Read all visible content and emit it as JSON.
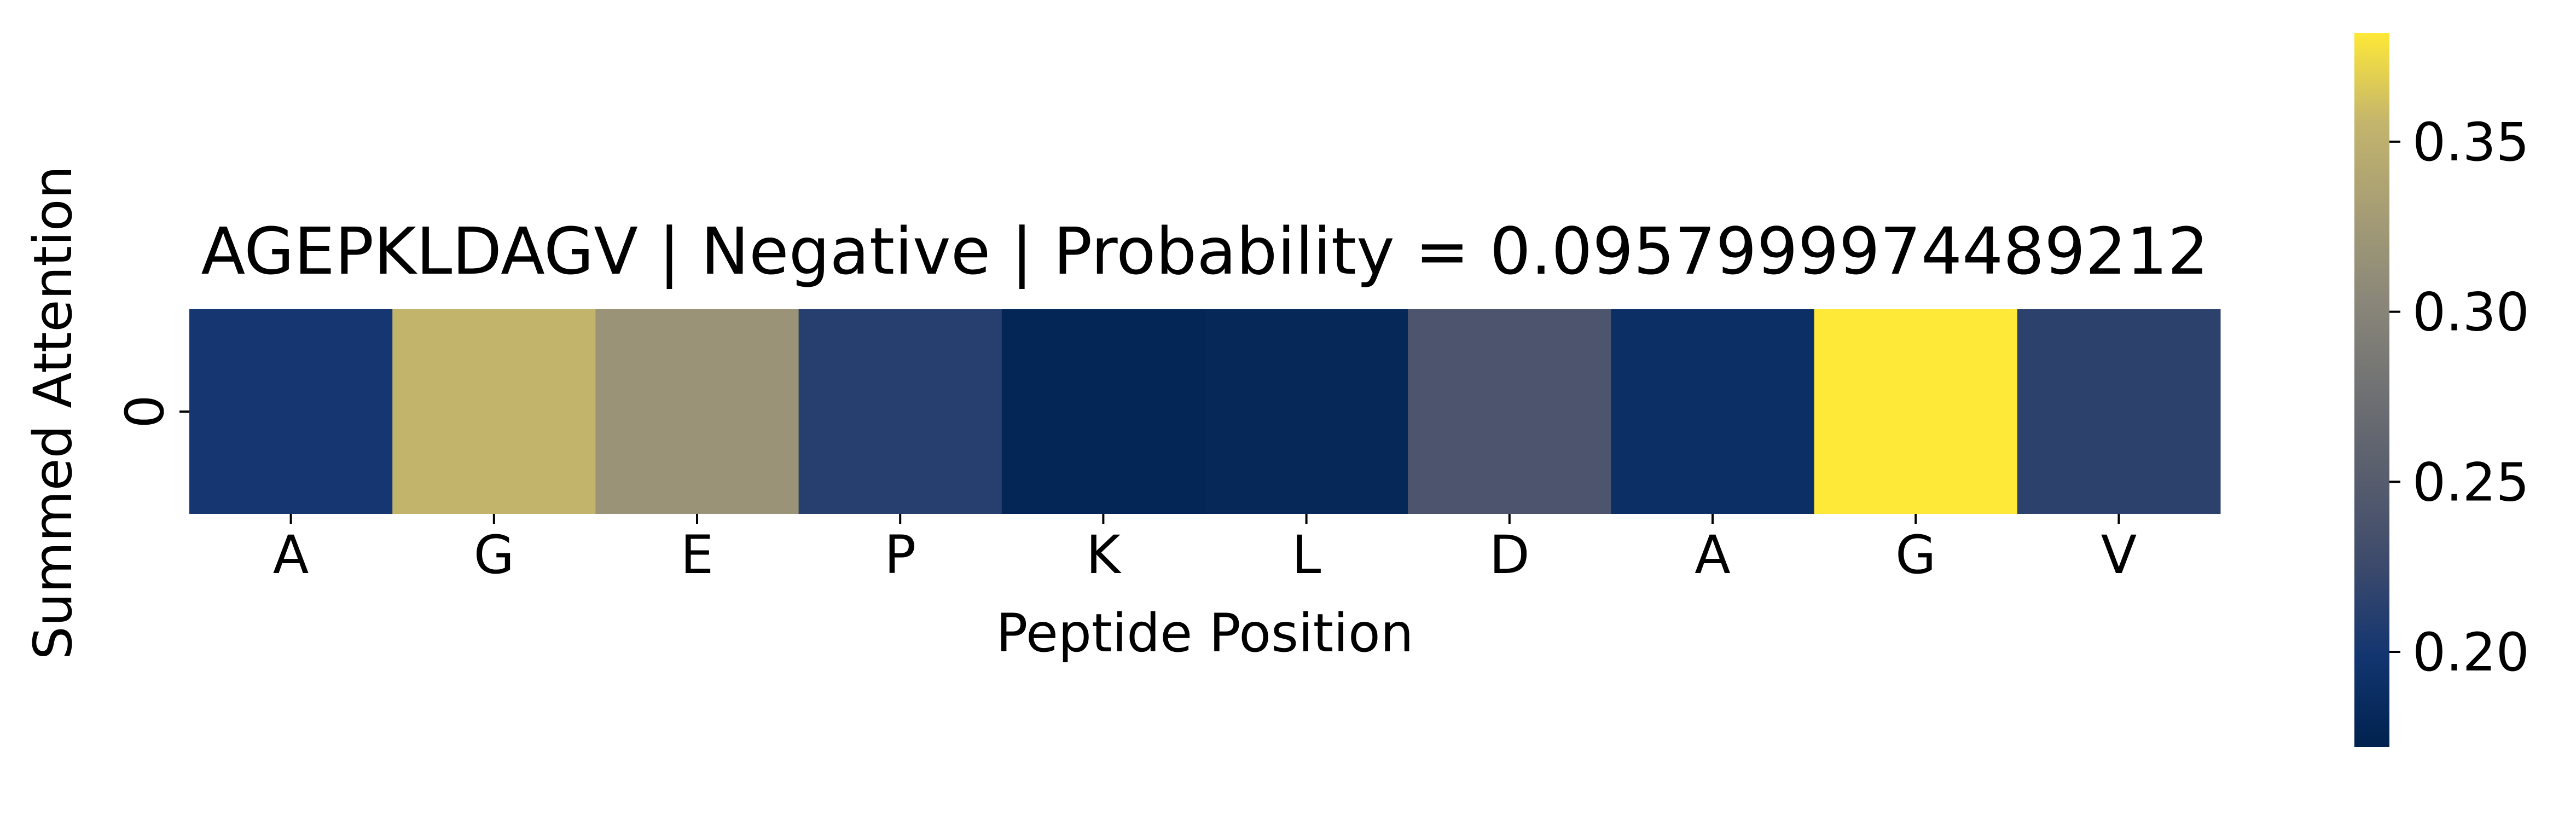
{
  "chart_data": {
    "type": "heatmap",
    "title": "AGEPKLDAGV | Negative | Probability = 0.0957999974489212",
    "xlabel": "Peptide Position",
    "ylabel": "Summed Attention",
    "x_tick_labels": [
      "A",
      "G",
      "E",
      "P",
      "K",
      "L",
      "D",
      "A",
      "G",
      "V"
    ],
    "y_tick_labels": [
      "0"
    ],
    "values": [
      [
        0.2,
        0.355,
        0.318,
        0.212,
        0.178,
        0.18,
        0.24,
        0.19,
        0.382,
        0.215
      ]
    ],
    "colormap": "cividis",
    "colorbar": {
      "range": [
        0.172,
        0.382
      ],
      "ticks": [
        0.2,
        0.25,
        0.3,
        0.35
      ],
      "tick_labels": [
        "0.20",
        "0.25",
        "0.30",
        "0.35"
      ]
    }
  }
}
